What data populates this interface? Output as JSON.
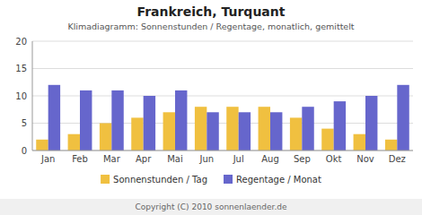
{
  "chart_data": {
    "type": "bar",
    "title": "Frankreich, Turquant",
    "subtitle": "Klimadiagramm: Sonnenstunden / Regentage, monatlich, gemittelt",
    "categories": [
      "Jan",
      "Feb",
      "Mar",
      "Apr",
      "Mai",
      "Jun",
      "Jul",
      "Aug",
      "Sep",
      "Okt",
      "Nov",
      "Dez"
    ],
    "series": [
      {
        "name": "Sonnenstunden / Tag",
        "color": "#f0c040",
        "values": [
          2,
          3,
          5,
          6,
          7,
          8,
          8,
          8,
          6,
          4,
          3,
          2
        ]
      },
      {
        "name": "Regentage / Monat",
        "color": "#6666cc",
        "values": [
          12,
          11,
          11,
          10,
          11,
          7,
          7,
          7,
          8,
          9,
          10,
          12
        ]
      }
    ],
    "ylim": [
      0,
      20
    ],
    "yticks": [
      0,
      5,
      10,
      15,
      20
    ],
    "grid": true,
    "legend": "bottom",
    "annotations": [
      "Copyright (C) 2010 sonnenlaender.de"
    ]
  }
}
